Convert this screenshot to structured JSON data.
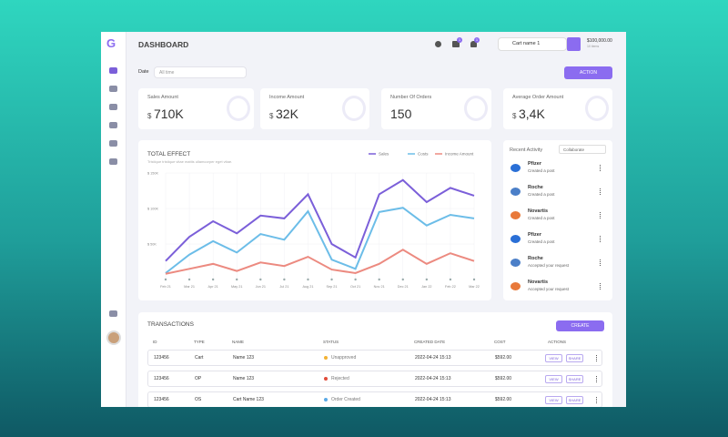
{
  "header": {
    "title": "DASHBOARD",
    "messages_badge": "1",
    "notifications_badge": "1",
    "cart": "Cart name 1",
    "balance": "$100,000.00",
    "balance_note": "10 items"
  },
  "filters": {
    "date_label": "Date",
    "date_placeholder": "All time",
    "action": "ACTION"
  },
  "stats": [
    {
      "label": "Sales Amount",
      "currency": "$",
      "value": "710K"
    },
    {
      "label": "Income Amount",
      "currency": "$",
      "value": "32K"
    },
    {
      "label": "Number Of Orders",
      "value": "150"
    },
    {
      "label": "Average Order Amount",
      "currency": "$",
      "value": "3,4K"
    }
  ],
  "chart_data": {
    "type": "line",
    "title": "TOTAL EFFECT",
    "subtitle": "Tristique tristique vitae mattis ullamcorper eget vitae.",
    "categories": [
      "Feb 21",
      "Mar 21",
      "Apr 21",
      "May 21",
      "Jun 21",
      "Jul 21",
      "Aug 21",
      "Sep 21",
      "Oct 21",
      "Nov 21",
      "Dec 21",
      "Jan 22",
      "Feb 22",
      "Mar 22"
    ],
    "series": [
      {
        "name": "Sales",
        "color": "#7b5fd9",
        "values": [
          26000,
          60000,
          82000,
          65000,
          90000,
          86000,
          120000,
          50000,
          31000,
          120000,
          140000,
          109000,
          129000,
          118000
        ]
      },
      {
        "name": "Costs",
        "color": "#6cbde8",
        "values": [
          9000,
          35000,
          54000,
          38000,
          64000,
          56000,
          96000,
          28000,
          15000,
          95000,
          101000,
          76000,
          91000,
          86000
        ]
      },
      {
        "name": "Income Amount",
        "color": "#ec8a80",
        "values": [
          8000,
          15000,
          22000,
          12000,
          24000,
          19000,
          32000,
          14000,
          9000,
          22000,
          42000,
          22000,
          37000,
          26000
        ]
      }
    ],
    "ylim": [
      0,
      150000
    ],
    "yticks": [
      {
        "value": 50000,
        "label": "$ 50K"
      },
      {
        "value": 100000,
        "label": "$ 100K"
      },
      {
        "value": 150000,
        "label": "$ 150K"
      }
    ],
    "grid": true
  },
  "activity": {
    "title": "Recent Activity",
    "filter": "Collaborate",
    "items": [
      {
        "company": "Pfizer",
        "action": "Created a post"
      },
      {
        "company": "Roche",
        "action": "Created a post"
      },
      {
        "company": "Novartis",
        "action": "Created a post"
      },
      {
        "company": "Pfizer",
        "action": "Created a post"
      },
      {
        "company": "Roche",
        "action": "Accepted your request"
      },
      {
        "company": "Novartis",
        "action": "Accepted your request"
      }
    ]
  },
  "transactions": {
    "title": "TRANSACTIONS",
    "create": "CREATE",
    "columns": [
      "ID",
      "TYPE",
      "NAME",
      "STATUS",
      "CREATED DATE",
      "COST",
      "ACTIONS"
    ],
    "rows": [
      [
        "123456",
        "Cart",
        "Name 123",
        "Unapproved",
        "2022-04-24 15:13",
        "$592.00"
      ],
      [
        "123456",
        "OP",
        "Name 123",
        "Rejected",
        "2022-04-24 15:13",
        "$592.00"
      ],
      [
        "123456",
        "OS",
        "Cart Name 123",
        "Order Created",
        "2022-04-24 15:13",
        "$592.00"
      ]
    ],
    "actions": [
      "VIEW",
      "SHARE"
    ]
  }
}
